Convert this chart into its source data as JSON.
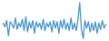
{
  "values": [
    2,
    -1,
    4,
    -8,
    3,
    1,
    -2,
    6,
    -3,
    2,
    -1,
    5,
    -4,
    7,
    -5,
    3,
    -2,
    4,
    -6,
    3,
    -1,
    2,
    -3,
    5,
    -4,
    2,
    -1,
    3,
    -5,
    4,
    -2,
    3,
    -6,
    4,
    -2,
    5,
    -3,
    2,
    -4,
    6,
    -3,
    2,
    -4,
    5,
    18,
    -3,
    -10,
    4,
    -2,
    3,
    -5,
    2,
    -4,
    3,
    -6,
    2,
    -3,
    4,
    -2,
    1
  ],
  "line_color": "#4393c4",
  "background_color": "#ffffff",
  "linewidth": 0.9
}
